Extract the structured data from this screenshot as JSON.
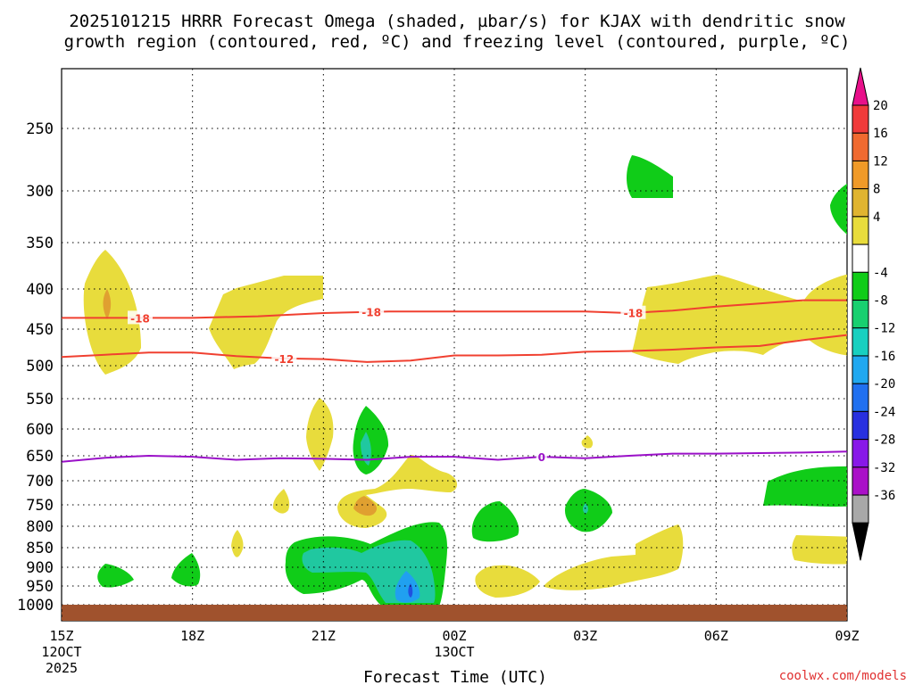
{
  "colors": {
    "dgz": "#f04030",
    "freezing": "#9a10c8",
    "ground": "#a0522d",
    "yellow": "#e8dc3c",
    "green": "#10cc18",
    "teal": "#20c8a0",
    "blue": "#20a0f0",
    "orange": "#e0a030"
  },
  "chart_data": {
    "type": "contour",
    "title_line1": "2025101215 HRRR Forecast Omega (shaded, µbar/s) for KJAX with dendritic snow",
    "title_line2": "growth region (contoured, red, ºC) and freezing level (contoured, purple, ºC)",
    "xlabel": "Forecast Time (UTC)",
    "ylabel": "",
    "credit": "coolwx.com/models",
    "x_range_hours": [
      15,
      33
    ],
    "y_range_hPa": [
      200,
      1050
    ],
    "y_ticks": [
      250,
      300,
      350,
      400,
      450,
      500,
      550,
      600,
      650,
      700,
      750,
      800,
      850,
      900,
      950,
      1000
    ],
    "x_ticks": [
      {
        "hour": 15,
        "label": "15Z",
        "sub1": "12OCT",
        "sub2": "2025"
      },
      {
        "hour": 18,
        "label": "18Z",
        "sub1": "",
        "sub2": ""
      },
      {
        "hour": 21,
        "label": "21Z",
        "sub1": "",
        "sub2": ""
      },
      {
        "hour": 24,
        "label": "00Z",
        "sub1": "13OCT",
        "sub2": ""
      },
      {
        "hour": 27,
        "label": "03Z",
        "sub1": "",
        "sub2": ""
      },
      {
        "hour": 30,
        "label": "06Z",
        "sub1": "",
        "sub2": ""
      },
      {
        "hour": 33,
        "label": "09Z",
        "sub1": "",
        "sub2": ""
      }
    ],
    "colorbar": {
      "unit": "µbar/s",
      "ticks": [
        "20",
        "16",
        "12",
        "8",
        "4",
        "-4",
        "-8",
        "-12",
        "-16",
        "-20",
        "-24",
        "-28",
        "-32",
        "-36"
      ],
      "segments": [
        "#f03a3a",
        "#f06a30",
        "#f09a28",
        "#e0b430",
        "#e8dc3c",
        "#ffffff",
        "#10cc18",
        "#18d070",
        "#18d0c0",
        "#20a8f0",
        "#2070f0",
        "#2830e0",
        "#8818e8",
        "#aa10c8",
        "#a8a8a8"
      ],
      "top_arrow": "#e8108a",
      "bottom_arrow": "#000000"
    },
    "contours": [
      {
        "name": "dgz-minus18",
        "label": "-18",
        "color": "#f04030",
        "points": [
          [
            15,
            436
          ],
          [
            16.5,
            436
          ],
          [
            18,
            436
          ],
          [
            19.5,
            434
          ],
          [
            21,
            430
          ],
          [
            22.5,
            428
          ],
          [
            24,
            428
          ],
          [
            25.5,
            428
          ],
          [
            27,
            428
          ],
          [
            28,
            430
          ],
          [
            29,
            427
          ],
          [
            30,
            422
          ],
          [
            31,
            418
          ],
          [
            32,
            414
          ],
          [
            33,
            414
          ]
        ],
        "label_hours": [
          16.8,
          22.1,
          28.1
        ]
      },
      {
        "name": "dgz-minus12",
        "label": "-12",
        "color": "#f04030",
        "points": [
          [
            15,
            488
          ],
          [
            16,
            485
          ],
          [
            17,
            482
          ],
          [
            18,
            482
          ],
          [
            19,
            487
          ],
          [
            20,
            490
          ],
          [
            21,
            491
          ],
          [
            22,
            495
          ],
          [
            23,
            493
          ],
          [
            24,
            486
          ],
          [
            25,
            486
          ],
          [
            26,
            485
          ],
          [
            27,
            481
          ],
          [
            28,
            480
          ],
          [
            29,
            478
          ],
          [
            30,
            475
          ],
          [
            31,
            473
          ],
          [
            32,
            465
          ],
          [
            33,
            458
          ]
        ],
        "label_hours": [
          20.1
        ]
      },
      {
        "name": "freezing-level-0",
        "label": "0",
        "color": "#9a10c8",
        "points": [
          [
            15,
            662
          ],
          [
            16,
            654
          ],
          [
            17,
            650
          ],
          [
            18,
            652
          ],
          [
            19,
            658
          ],
          [
            20,
            655
          ],
          [
            21,
            656
          ],
          [
            22,
            658
          ],
          [
            23,
            652
          ],
          [
            24,
            652
          ],
          [
            25,
            658
          ],
          [
            26,
            652
          ],
          [
            27,
            655
          ],
          [
            28,
            650
          ],
          [
            29,
            646
          ],
          [
            30,
            646
          ],
          [
            31,
            645
          ],
          [
            32,
            644
          ],
          [
            33,
            642
          ]
        ],
        "label_hours": [
          26.0
        ]
      }
    ]
  }
}
